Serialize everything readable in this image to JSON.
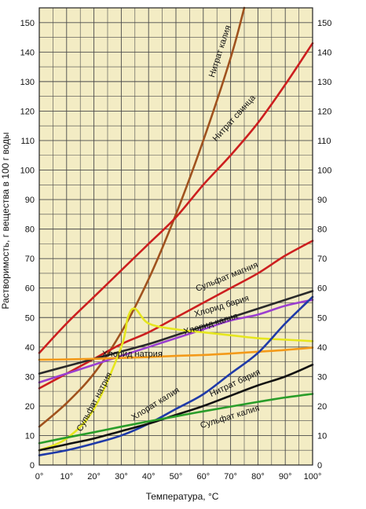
{
  "chart_data": {
    "type": "line",
    "xlabel": "Температура, °С",
    "ylabel": "Растворимость, г вещества в 100 г воды",
    "xlim": [
      0,
      100
    ],
    "ylim": [
      0,
      155
    ],
    "grid": true,
    "x_ticks": [
      {
        "value": 0,
        "label": "0°"
      },
      {
        "value": 10,
        "label": "10°"
      },
      {
        "value": 20,
        "label": "20°"
      },
      {
        "value": 30,
        "label": "30°"
      },
      {
        "value": 40,
        "label": "40°"
      },
      {
        "value": 50,
        "label": "50°"
      },
      {
        "value": 60,
        "label": "60°"
      },
      {
        "value": 70,
        "label": "70°"
      },
      {
        "value": 80,
        "label": "80°"
      },
      {
        "value": 90,
        "label": "90°"
      },
      {
        "value": 100,
        "label": "100°"
      }
    ],
    "y_ticks": [
      {
        "value": 0,
        "label": "0"
      },
      {
        "value": 10,
        "label": "10"
      },
      {
        "value": 20,
        "label": "20"
      },
      {
        "value": 30,
        "label": "30"
      },
      {
        "value": 40,
        "label": "40"
      },
      {
        "value": 50,
        "label": "50"
      },
      {
        "value": 60,
        "label": "60"
      },
      {
        "value": 70,
        "label": "70"
      },
      {
        "value": 80,
        "label": "80"
      },
      {
        "value": 90,
        "label": "90"
      },
      {
        "value": 100,
        "label": "100"
      },
      {
        "value": 110,
        "label": "110"
      },
      {
        "value": 120,
        "label": "120"
      },
      {
        "value": 130,
        "label": "130"
      },
      {
        "value": 140,
        "label": "140"
      },
      {
        "value": 150,
        "label": "150"
      }
    ],
    "series": [
      {
        "name": "Нитрат калия",
        "color": "#a0521e",
        "points": [
          [
            0,
            13
          ],
          [
            10,
            21
          ],
          [
            20,
            31
          ],
          [
            30,
            45
          ],
          [
            40,
            63
          ],
          [
            50,
            85
          ],
          [
            60,
            110
          ],
          [
            70,
            138
          ],
          [
            75,
            155
          ]
        ],
        "label_at": [
          67,
          140
        ],
        "label_angle": -72
      },
      {
        "name": "Нитрат свинца",
        "color": "#cc1f1f",
        "points": [
          [
            0,
            38
          ],
          [
            10,
            48
          ],
          [
            20,
            57
          ],
          [
            30,
            66
          ],
          [
            40,
            75
          ],
          [
            50,
            84
          ],
          [
            60,
            95
          ],
          [
            70,
            105
          ],
          [
            80,
            116
          ],
          [
            90,
            129
          ],
          [
            100,
            143
          ]
        ],
        "label_at": [
          72,
          117
        ],
        "label_angle": -48
      },
      {
        "name": "Сульфат магния",
        "color": "#cc1f1f",
        "points": [
          [
            0,
            26
          ],
          [
            10,
            31
          ],
          [
            20,
            36
          ],
          [
            30,
            41
          ],
          [
            40,
            45
          ],
          [
            50,
            50
          ],
          [
            60,
            55
          ],
          [
            70,
            60
          ],
          [
            80,
            65
          ],
          [
            90,
            71
          ],
          [
            100,
            76
          ]
        ],
        "label_at": [
          69,
          63
        ],
        "label_angle": -22
      },
      {
        "name": "Хлорид бария",
        "color": "#2a2a2a",
        "points": [
          [
            0,
            31
          ],
          [
            10,
            33.5
          ],
          [
            20,
            36
          ],
          [
            30,
            38.5
          ],
          [
            40,
            41
          ],
          [
            50,
            44
          ],
          [
            60,
            47
          ],
          [
            70,
            50
          ],
          [
            80,
            53
          ],
          [
            90,
            56
          ],
          [
            100,
            59
          ]
        ],
        "label_at": [
          67,
          53
        ],
        "label_angle": -17
      },
      {
        "name": "Хлорид калия",
        "color": "#9b3fd0",
        "points": [
          [
            0,
            28
          ],
          [
            10,
            31
          ],
          [
            20,
            34
          ],
          [
            30,
            37
          ],
          [
            40,
            40
          ],
          [
            50,
            43
          ],
          [
            60,
            46
          ],
          [
            70,
            49
          ],
          [
            80,
            51
          ],
          [
            90,
            54
          ],
          [
            100,
            56
          ]
        ],
        "label_at": [
          63,
          47
        ],
        "label_angle": -17
      },
      {
        "name": "Хлорид натрия",
        "color": "#f39a1a",
        "points": [
          [
            0,
            35.7
          ],
          [
            10,
            35.8
          ],
          [
            20,
            36
          ],
          [
            30,
            36.3
          ],
          [
            40,
            36.6
          ],
          [
            50,
            37
          ],
          [
            60,
            37.3
          ],
          [
            70,
            37.8
          ],
          [
            80,
            38.4
          ],
          [
            90,
            39
          ],
          [
            100,
            39.8
          ]
        ],
        "label_at": [
          34,
          36.8
        ],
        "label_angle": 0
      },
      {
        "name": "Сульфат натрия",
        "color": "#e6e61e",
        "points": [
          [
            0,
            5
          ],
          [
            10,
            9
          ],
          [
            20,
            19
          ],
          [
            30,
            40
          ],
          [
            32.4,
            50
          ],
          [
            35,
            53
          ],
          [
            40,
            48
          ],
          [
            50,
            46
          ],
          [
            60,
            45
          ],
          [
            70,
            44
          ],
          [
            80,
            43
          ],
          [
            90,
            42.5
          ],
          [
            100,
            42
          ]
        ],
        "label_at": [
          21,
          21
        ],
        "label_angle": -62
      },
      {
        "name": "Хлорат калия",
        "color": "#1f3aa8",
        "points": [
          [
            0,
            3.3
          ],
          [
            10,
            5
          ],
          [
            20,
            7.3
          ],
          [
            30,
            10
          ],
          [
            40,
            14
          ],
          [
            50,
            19
          ],
          [
            60,
            24
          ],
          [
            70,
            31
          ],
          [
            80,
            38
          ],
          [
            90,
            48
          ],
          [
            100,
            57
          ]
        ],
        "label_at": [
          43,
          20
        ],
        "label_angle": -32
      },
      {
        "name": "Нитрат бария",
        "color": "#111111",
        "points": [
          [
            0,
            5
          ],
          [
            10,
            7
          ],
          [
            20,
            9
          ],
          [
            30,
            11.5
          ],
          [
            40,
            14
          ],
          [
            50,
            17
          ],
          [
            60,
            20
          ],
          [
            70,
            23.5
          ],
          [
            80,
            27
          ],
          [
            90,
            30
          ],
          [
            100,
            34
          ]
        ],
        "label_at": [
          72,
          27
        ],
        "label_angle": -25
      },
      {
        "name": "Сульфат калия",
        "color": "#2a9d2a",
        "points": [
          [
            0,
            7.4
          ],
          [
            10,
            9.3
          ],
          [
            20,
            11.1
          ],
          [
            30,
            13
          ],
          [
            40,
            14.8
          ],
          [
            50,
            16.5
          ],
          [
            60,
            18.2
          ],
          [
            70,
            19.8
          ],
          [
            80,
            21.4
          ],
          [
            90,
            22.9
          ],
          [
            100,
            24.1
          ]
        ],
        "label_at": [
          70,
          15.5
        ],
        "label_angle": -17
      }
    ]
  }
}
